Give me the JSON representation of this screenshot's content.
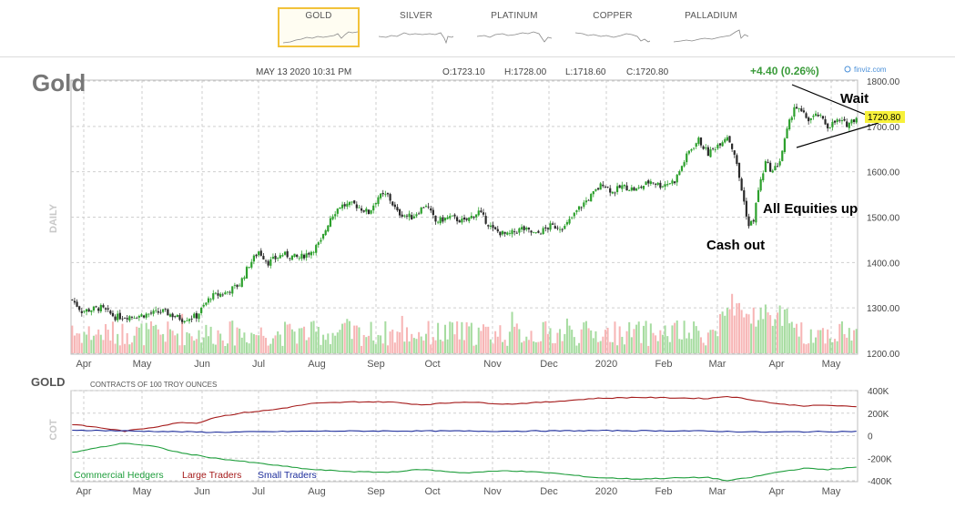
{
  "tabs": [
    {
      "label": "GOLD",
      "active": true
    },
    {
      "label": "SILVER",
      "active": false
    },
    {
      "label": "PLATINUM",
      "active": false
    },
    {
      "label": "COPPER",
      "active": false
    },
    {
      "label": "PALLADIUM",
      "active": false
    }
  ],
  "header": {
    "symbol": "Gold",
    "timestamp": "MAY 13 2020 10:31 PM",
    "open": "O:1723.10",
    "high": "H:1728.00",
    "low": "L:1718.60",
    "close": "C:1720.80",
    "change": "+4.40 (0.26%)",
    "watermark": "finviz.com",
    "timeframe": "DAILY"
  },
  "colors": {
    "up": "#2ca02c",
    "down": "#2a2a2a",
    "vol_up": "#a6dca0",
    "vol_down": "#f7b5b5",
    "price_tag_bg": "#f7f13a",
    "change": "#3a9b3a",
    "active_tab": "#f2c23a",
    "commercial": "#1f9e3c",
    "large": "#a51b1b",
    "small": "#1e2e9c",
    "grid": "#cfcfcf"
  },
  "annotations": [
    "Wait",
    "All Equities up",
    "Cash out"
  ],
  "cot": {
    "title": "GOLD",
    "subtitle": "CONTRACTS OF 100 TROY OUNCES",
    "side_label": "COT",
    "legend": [
      "Commercial Hedgers",
      "Large Traders",
      "Small Traders"
    ],
    "y_ticks": [
      "400K",
      "200K",
      "0",
      "-200K",
      "-400K"
    ]
  },
  "chart_data": [
    {
      "type": "candlestick",
      "title": "Gold",
      "ylim": [
        1200,
        1800
      ],
      "y_ticks": [
        "1200.00",
        "1300.00",
        "1400.00",
        "1500.00",
        "1600.00",
        "1700.00",
        "1800.00"
      ],
      "last_price": "1720.80",
      "x_ticks": [
        "Apr",
        "May",
        "Jun",
        "Jul",
        "Aug",
        "Sep",
        "Oct",
        "Nov",
        "Dec",
        "2020",
        "Feb",
        "Mar",
        "Apr",
        "May"
      ],
      "grid": true,
      "close_path": [
        {
          "t": 0,
          "v": 1318
        },
        {
          "t": 4,
          "v": 1293
        },
        {
          "t": 12,
          "v": 1300
        },
        {
          "t": 18,
          "v": 1280
        },
        {
          "t": 28,
          "v": 1283
        },
        {
          "t": 38,
          "v": 1292
        },
        {
          "t": 46,
          "v": 1275
        },
        {
          "t": 52,
          "v": 1282
        },
        {
          "t": 58,
          "v": 1325
        },
        {
          "t": 64,
          "v": 1333
        },
        {
          "t": 70,
          "v": 1352
        },
        {
          "t": 74,
          "v": 1395
        },
        {
          "t": 78,
          "v": 1425
        },
        {
          "t": 82,
          "v": 1400
        },
        {
          "t": 88,
          "v": 1418
        },
        {
          "t": 95,
          "v": 1410
        },
        {
          "t": 100,
          "v": 1425
        },
        {
          "t": 104,
          "v": 1445
        },
        {
          "t": 108,
          "v": 1500
        },
        {
          "t": 112,
          "v": 1525
        },
        {
          "t": 118,
          "v": 1528
        },
        {
          "t": 124,
          "v": 1510
        },
        {
          "t": 128,
          "v": 1545
        },
        {
          "t": 132,
          "v": 1548
        },
        {
          "t": 136,
          "v": 1510
        },
        {
          "t": 142,
          "v": 1500
        },
        {
          "t": 148,
          "v": 1528
        },
        {
          "t": 152,
          "v": 1490
        },
        {
          "t": 158,
          "v": 1500
        },
        {
          "t": 164,
          "v": 1490
        },
        {
          "t": 170,
          "v": 1512
        },
        {
          "t": 176,
          "v": 1472
        },
        {
          "t": 182,
          "v": 1460
        },
        {
          "t": 188,
          "v": 1475
        },
        {
          "t": 194,
          "v": 1462
        },
        {
          "t": 200,
          "v": 1480
        },
        {
          "t": 206,
          "v": 1478
        },
        {
          "t": 212,
          "v": 1520
        },
        {
          "t": 218,
          "v": 1552
        },
        {
          "t": 222,
          "v": 1575
        },
        {
          "t": 226,
          "v": 1555
        },
        {
          "t": 230,
          "v": 1568
        },
        {
          "t": 236,
          "v": 1560
        },
        {
          "t": 242,
          "v": 1580
        },
        {
          "t": 246,
          "v": 1570
        },
        {
          "t": 252,
          "v": 1580
        },
        {
          "t": 258,
          "v": 1645
        },
        {
          "t": 262,
          "v": 1670
        },
        {
          "t": 266,
          "v": 1640
        },
        {
          "t": 270,
          "v": 1660
        },
        {
          "t": 274,
          "v": 1680
        },
        {
          "t": 277,
          "v": 1640
        },
        {
          "t": 280,
          "v": 1560
        },
        {
          "t": 283,
          "v": 1480
        },
        {
          "t": 285,
          "v": 1495
        },
        {
          "t": 287,
          "v": 1560
        },
        {
          "t": 290,
          "v": 1620
        },
        {
          "t": 293,
          "v": 1600
        },
        {
          "t": 296,
          "v": 1625
        },
        {
          "t": 299,
          "v": 1690
        },
        {
          "t": 302,
          "v": 1745
        },
        {
          "t": 305,
          "v": 1730
        },
        {
          "t": 308,
          "v": 1715
        },
        {
          "t": 312,
          "v": 1725
        },
        {
          "t": 316,
          "v": 1700
        },
        {
          "t": 320,
          "v": 1712
        },
        {
          "t": 324,
          "v": 1705
        },
        {
          "t": 328,
          "v": 1720
        }
      ]
    },
    {
      "type": "line",
      "title": "GOLD",
      "ylim": [
        -400,
        400
      ],
      "series": [
        {
          "name": "Large Traders",
          "points": [
            {
              "t": 0,
              "v": 100
            },
            {
              "t": 10,
              "v": 75
            },
            {
              "t": 22,
              "v": 40
            },
            {
              "t": 34,
              "v": 75
            },
            {
              "t": 46,
              "v": 120
            },
            {
              "t": 52,
              "v": 110
            },
            {
              "t": 60,
              "v": 165
            },
            {
              "t": 72,
              "v": 205
            },
            {
              "t": 84,
              "v": 230
            },
            {
              "t": 100,
              "v": 285
            },
            {
              "t": 118,
              "v": 300
            },
            {
              "t": 132,
              "v": 300
            },
            {
              "t": 146,
              "v": 275
            },
            {
              "t": 164,
              "v": 300
            },
            {
              "t": 182,
              "v": 280
            },
            {
              "t": 200,
              "v": 300
            },
            {
              "t": 218,
              "v": 330
            },
            {
              "t": 236,
              "v": 340
            },
            {
              "t": 252,
              "v": 335
            },
            {
              "t": 266,
              "v": 330
            },
            {
              "t": 274,
              "v": 350
            },
            {
              "t": 284,
              "v": 320
            },
            {
              "t": 296,
              "v": 280
            },
            {
              "t": 306,
              "v": 265
            },
            {
              "t": 316,
              "v": 270
            },
            {
              "t": 328,
              "v": 255
            }
          ]
        },
        {
          "name": "Small Traders",
          "points": [
            {
              "t": 0,
              "v": 50
            },
            {
              "t": 30,
              "v": 40
            },
            {
              "t": 60,
              "v": 30
            },
            {
              "t": 100,
              "v": 40
            },
            {
              "t": 140,
              "v": 42
            },
            {
              "t": 180,
              "v": 40
            },
            {
              "t": 220,
              "v": 45
            },
            {
              "t": 260,
              "v": 42
            },
            {
              "t": 290,
              "v": 32
            },
            {
              "t": 328,
              "v": 38
            }
          ]
        },
        {
          "name": "Commercial Hedgers",
          "points": [
            {
              "t": 0,
              "v": -150
            },
            {
              "t": 10,
              "v": -110
            },
            {
              "t": 22,
              "v": -65
            },
            {
              "t": 34,
              "v": -95
            },
            {
              "t": 46,
              "v": -155
            },
            {
              "t": 60,
              "v": -200
            },
            {
              "t": 72,
              "v": -230
            },
            {
              "t": 84,
              "v": -260
            },
            {
              "t": 100,
              "v": -300
            },
            {
              "t": 118,
              "v": -320
            },
            {
              "t": 132,
              "v": -325
            },
            {
              "t": 146,
              "v": -300
            },
            {
              "t": 164,
              "v": -330
            },
            {
              "t": 182,
              "v": -310
            },
            {
              "t": 200,
              "v": -330
            },
            {
              "t": 218,
              "v": -370
            },
            {
              "t": 236,
              "v": -385
            },
            {
              "t": 252,
              "v": -375
            },
            {
              "t": 266,
              "v": -370
            },
            {
              "t": 274,
              "v": -400
            },
            {
              "t": 284,
              "v": -370
            },
            {
              "t": 296,
              "v": -320
            },
            {
              "t": 306,
              "v": -290
            },
            {
              "t": 316,
              "v": -300
            },
            {
              "t": 328,
              "v": -280
            }
          ]
        }
      ]
    }
  ]
}
